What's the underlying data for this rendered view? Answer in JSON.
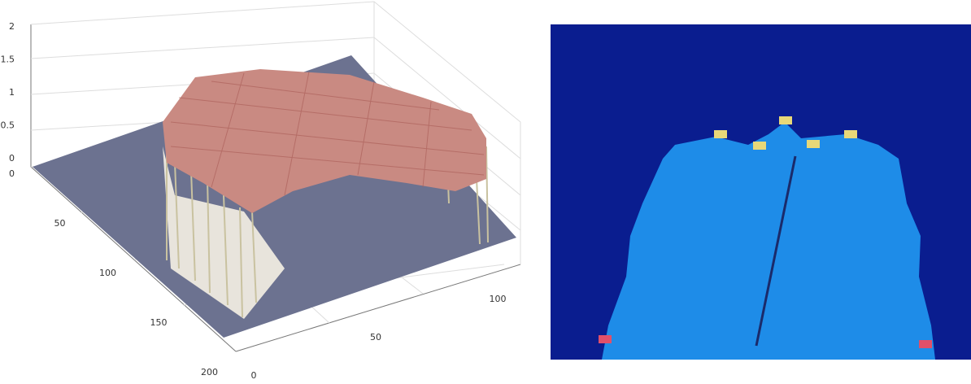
{
  "surface_plot": {
    "z_ticks": [
      0,
      0.5,
      1,
      1.5,
      2
    ],
    "y_ticks": [
      0,
      50,
      100,
      150,
      200
    ],
    "x_ticks": [
      0,
      50,
      100
    ]
  }
}
